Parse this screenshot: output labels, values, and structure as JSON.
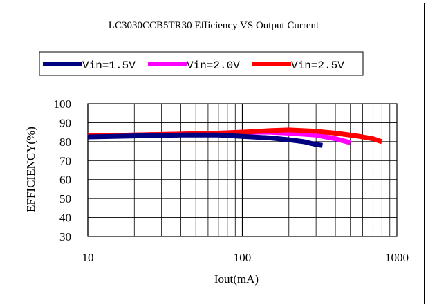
{
  "chart_data": {
    "type": "line",
    "title": "LC3030CCB5TR30 Efficiency VS Output Current",
    "xlabel": "Iout(mA)",
    "ylabel": "EFFICIENCY(%)",
    "x_scale": "log",
    "xlim": [
      10,
      1000
    ],
    "ylim": [
      30,
      100
    ],
    "x_ticks": [
      "10",
      "100",
      "1000"
    ],
    "y_ticks": [
      "100",
      "90",
      "80",
      "70",
      "60",
      "50",
      "40",
      "30"
    ],
    "grid": true,
    "legend_position": "top",
    "series": [
      {
        "name": "Vin=1.5V",
        "color": "#000080",
        "points": [
          [
            10,
            82.5
          ],
          [
            20,
            83
          ],
          [
            40,
            83.5
          ],
          [
            70,
            83.5
          ],
          [
            100,
            82.8
          ],
          [
            150,
            82
          ],
          [
            200,
            81
          ],
          [
            250,
            80
          ],
          [
            300,
            78.5
          ],
          [
            330,
            78
          ]
        ]
      },
      {
        "name": "Vin=2.0V",
        "color": "#ff00ff",
        "points": [
          [
            10,
            83
          ],
          [
            20,
            83.5
          ],
          [
            40,
            84
          ],
          [
            70,
            84.5
          ],
          [
            100,
            85
          ],
          [
            150,
            85
          ],
          [
            200,
            84.5
          ],
          [
            300,
            83.5
          ],
          [
            400,
            81.5
          ],
          [
            500,
            79.5
          ]
        ]
      },
      {
        "name": "Vin=2.5V",
        "color": "#ff0000",
        "points": [
          [
            10,
            83
          ],
          [
            20,
            83.5
          ],
          [
            40,
            84
          ],
          [
            70,
            84.5
          ],
          [
            100,
            85
          ],
          [
            150,
            85.8
          ],
          [
            200,
            86.2
          ],
          [
            300,
            85.5
          ],
          [
            400,
            84.5
          ],
          [
            550,
            83
          ],
          [
            700,
            81.5
          ],
          [
            800,
            80
          ]
        ]
      }
    ]
  }
}
